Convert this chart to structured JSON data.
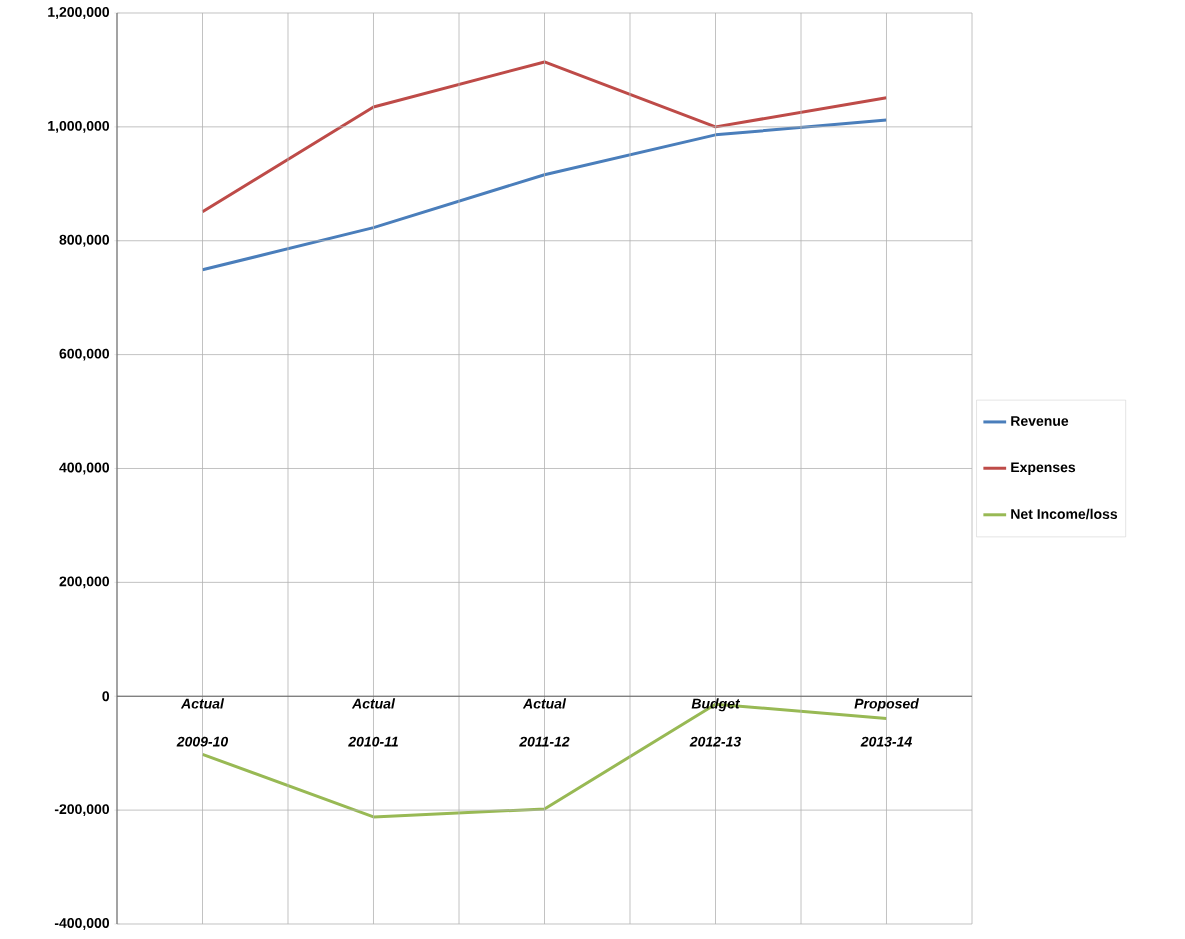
{
  "chart_data": {
    "type": "line",
    "categories": [
      "Actual 2009-10",
      "Actual 2010-11",
      "Actual 2011-12",
      "Budget 2012-13",
      "Proposed 2013-14"
    ],
    "series": [
      {
        "name": "Revenue",
        "color": "#4a7ebb",
        "values": [
          749000,
          823000,
          916000,
          986000,
          1012000
        ]
      },
      {
        "name": "Expenses",
        "color": "#be4b48",
        "values": [
          851000,
          1035000,
          1114000,
          1000000,
          1051000
        ]
      },
      {
        "name": "Net Income/loss",
        "color": "#98b954",
        "values": [
          -102000,
          -212000,
          -198000,
          -14000,
          -39000
        ]
      }
    ],
    "ylim": [
      -400000,
      1200000
    ],
    "yticks": [
      {
        "value": -400000,
        "label": "-400,000"
      },
      {
        "value": -200000,
        "label": "-200,000"
      },
      {
        "value": 0,
        "label": "0"
      },
      {
        "value": 200000,
        "label": "200,000"
      },
      {
        "value": 400000,
        "label": "400,000"
      },
      {
        "value": 600000,
        "label": "600,000"
      },
      {
        "value": 800000,
        "label": "800,000"
      },
      {
        "value": 1000000,
        "label": "1,000,000"
      },
      {
        "value": 1200000,
        "label": "1,200,000"
      }
    ],
    "grid": true,
    "legend": "right"
  }
}
